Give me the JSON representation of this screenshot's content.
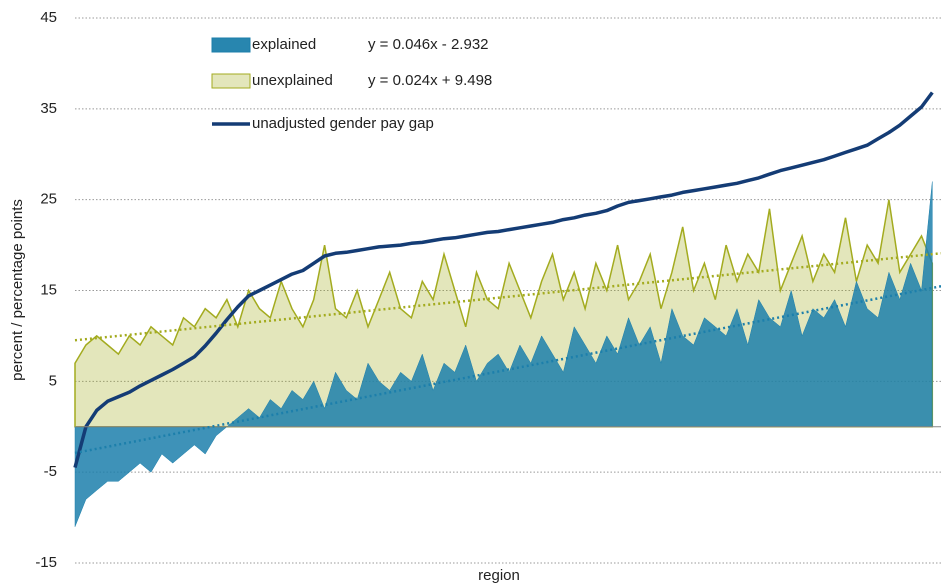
{
  "chart_data": {
    "type": "area",
    "x_label": "region",
    "y_label": "percent / percentage points",
    "x": [
      1,
      6,
      11,
      16,
      21,
      26,
      31,
      36,
      41,
      46,
      51,
      56,
      61,
      66,
      71,
      76,
      81,
      86,
      91,
      96,
      101,
      106,
      111,
      116,
      121,
      126,
      131,
      136,
      141,
      146,
      151,
      156,
      161,
      166,
      171,
      176,
      181,
      186,
      191,
      196,
      201,
      206,
      211,
      216,
      221,
      226,
      231,
      236,
      241,
      246,
      251,
      256,
      261,
      266,
      271,
      276,
      281,
      286,
      291,
      296,
      301,
      306,
      311,
      316,
      321,
      326,
      331,
      336,
      341,
      346,
      351,
      356,
      361,
      366,
      371,
      376,
      381,
      386,
      391,
      396
    ],
    "xlim": [
      1,
      400
    ],
    "ylim": [
      -15,
      45
    ],
    "yticks": [
      -15,
      -5,
      5,
      15,
      25,
      35,
      45
    ],
    "grid": true,
    "series": [
      {
        "name": "explained",
        "kind": "area",
        "color": "#1c7fab",
        "trendline": {
          "label": "y = 0.046x - 2.932",
          "slope": 0.046,
          "intercept": -2.932
        },
        "values": [
          -11,
          -8,
          -7,
          -6,
          -6,
          -5,
          -4,
          -5,
          -3,
          -4,
          -3,
          -2,
          -3,
          -1,
          0,
          1,
          2,
          1,
          3,
          2,
          4,
          3,
          5,
          2,
          6,
          4,
          3,
          7,
          5,
          4,
          6,
          5,
          8,
          4,
          7,
          6,
          9,
          5,
          7,
          8,
          6,
          9,
          7,
          10,
          8,
          6,
          11,
          9,
          7,
          10,
          8,
          12,
          9,
          11,
          7,
          13,
          10,
          9,
          12,
          11,
          10,
          13,
          9,
          14,
          12,
          11,
          15,
          10,
          13,
          12,
          14,
          11,
          16,
          13,
          12,
          17,
          14,
          18,
          15,
          27
        ]
      },
      {
        "name": "unexplained",
        "kind": "area",
        "color": "#a3ab1f",
        "trendline": {
          "label": "y = 0.024x + 9.498",
          "slope": 0.024,
          "intercept": 9.498
        },
        "values": [
          7,
          9,
          10,
          9,
          8,
          10,
          9,
          11,
          10,
          9,
          12,
          11,
          13,
          12,
          14,
          11,
          15,
          13,
          12,
          16,
          13,
          11,
          14,
          20,
          13,
          12,
          15,
          11,
          14,
          17,
          13,
          12,
          16,
          14,
          19,
          15,
          11,
          17,
          14,
          13,
          18,
          15,
          12,
          16,
          19,
          14,
          17,
          13,
          18,
          15,
          20,
          14,
          16,
          19,
          13,
          17,
          22,
          15,
          18,
          14,
          20,
          16,
          19,
          17,
          24,
          15,
          18,
          21,
          16,
          19,
          17,
          23,
          16,
          20,
          18,
          25,
          17,
          19,
          21,
          18
        ]
      },
      {
        "name": "unadjusted gender pay gap",
        "kind": "line",
        "color": "#143c75",
        "values": [
          -4.5,
          0,
          1.8,
          2.8,
          3.3,
          3.8,
          4.5,
          5.1,
          5.7,
          6.3,
          7,
          7.7,
          8.9,
          10.3,
          11.8,
          13.2,
          14.4,
          15,
          15.6,
          16.2,
          16.8,
          17.2,
          18,
          18.8,
          19.1,
          19.2,
          19.4,
          19.6,
          19.8,
          19.9,
          20,
          20.2,
          20.3,
          20.5,
          20.7,
          20.8,
          21,
          21.2,
          21.4,
          21.5,
          21.7,
          21.9,
          22.1,
          22.3,
          22.5,
          22.8,
          23,
          23.3,
          23.5,
          23.8,
          24.3,
          24.7,
          24.9,
          25.1,
          25.3,
          25.5,
          25.8,
          26,
          26.2,
          26.4,
          26.6,
          26.8,
          27.1,
          27.4,
          27.8,
          28.2,
          28.5,
          28.8,
          29.1,
          29.4,
          29.8,
          30.2,
          30.6,
          31,
          31.7,
          32.4,
          33.2,
          34.2,
          35.2,
          36.8
        ]
      }
    ]
  }
}
